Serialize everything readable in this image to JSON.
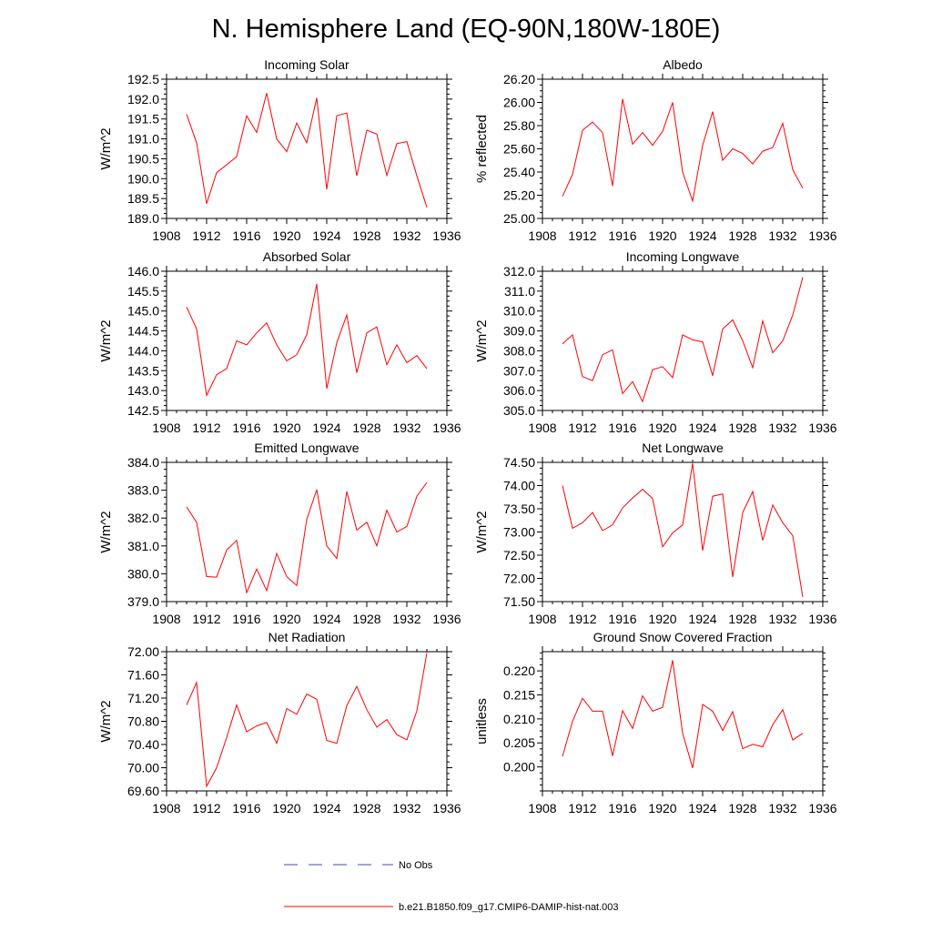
{
  "figure": {
    "title": "N. Hemisphere Land (EQ-90N,180W-180E)"
  },
  "legend": [
    {
      "label": "No Obs",
      "color": "#3b4bbf",
      "dash": true
    },
    {
      "label": "b.e21.B1850.f09_g17.CMIP6-DAMIP-hist-nat.003",
      "color": "#ff0000",
      "dash": false
    }
  ],
  "chart_data": [
    {
      "type": "line",
      "title": "Incoming Solar",
      "ylabel": "W/m^2",
      "xlim": [
        1908,
        1936
      ],
      "xticks": [
        1908,
        1912,
        1916,
        1920,
        1924,
        1928,
        1932,
        1936
      ],
      "ylim": [
        189.0,
        192.5
      ],
      "yticks": [
        "189.0",
        "189.5",
        "190.0",
        "190.5",
        "191.0",
        "191.5",
        "192.0",
        "192.5"
      ],
      "color": "#ff0000",
      "x": [
        1910,
        1911,
        1912,
        1913,
        1914,
        1915,
        1916,
        1917,
        1918,
        1919,
        1920,
        1921,
        1922,
        1923,
        1924,
        1925,
        1926,
        1927,
        1928,
        1929,
        1930,
        1931,
        1932,
        1933,
        1934
      ],
      "y": [
        191.62,
        190.9,
        189.37,
        190.15,
        190.35,
        190.55,
        191.58,
        191.16,
        192.15,
        191.0,
        190.68,
        191.4,
        190.9,
        192.03,
        189.73,
        191.58,
        191.65,
        190.07,
        191.22,
        191.12,
        190.08,
        190.88,
        190.93,
        190.07,
        189.28
      ]
    },
    {
      "type": "line",
      "title": "Albedo",
      "ylabel": "% reflected",
      "xlim": [
        1908,
        1936
      ],
      "xticks": [
        1908,
        1912,
        1916,
        1920,
        1924,
        1928,
        1932,
        1936
      ],
      "ylim": [
        25.0,
        26.2
      ],
      "yticks": [
        "25.00",
        "25.20",
        "25.40",
        "25.60",
        "25.80",
        "26.00",
        "26.20"
      ],
      "color": "#ff0000",
      "x": [
        1910,
        1911,
        1912,
        1913,
        1914,
        1915,
        1916,
        1917,
        1918,
        1919,
        1920,
        1921,
        1922,
        1923,
        1924,
        1925,
        1926,
        1927,
        1928,
        1929,
        1930,
        1931,
        1932,
        1933,
        1934
      ],
      "y": [
        25.19,
        25.38,
        25.76,
        25.83,
        25.74,
        25.28,
        26.03,
        25.64,
        25.74,
        25.63,
        25.75,
        26.0,
        25.4,
        25.15,
        25.63,
        25.92,
        25.5,
        25.6,
        25.56,
        25.47,
        25.58,
        25.61,
        25.82,
        25.42,
        25.26
      ]
    },
    {
      "type": "line",
      "title": "Absorbed Solar",
      "ylabel": "W/m^2",
      "xlim": [
        1908,
        1936
      ],
      "xticks": [
        1908,
        1912,
        1916,
        1920,
        1924,
        1928,
        1932,
        1936
      ],
      "ylim": [
        142.5,
        146.0
      ],
      "yticks": [
        "142.5",
        "143.0",
        "143.5",
        "144.0",
        "144.5",
        "145.0",
        "145.5",
        "146.0"
      ],
      "color": "#ff0000",
      "x": [
        1910,
        1911,
        1912,
        1913,
        1914,
        1915,
        1916,
        1917,
        1918,
        1919,
        1920,
        1921,
        1922,
        1923,
        1924,
        1925,
        1926,
        1927,
        1928,
        1929,
        1930,
        1931,
        1932,
        1933,
        1934
      ],
      "y": [
        145.1,
        144.55,
        142.88,
        143.4,
        143.55,
        144.25,
        144.15,
        144.45,
        144.7,
        144.15,
        143.75,
        143.9,
        144.4,
        145.68,
        143.05,
        144.2,
        144.9,
        143.45,
        144.45,
        144.6,
        143.65,
        144.15,
        143.7,
        143.88,
        143.55
      ]
    },
    {
      "type": "line",
      "title": "Incoming Longwave",
      "ylabel": "W/m^2",
      "xlim": [
        1908,
        1936
      ],
      "xticks": [
        1908,
        1912,
        1916,
        1920,
        1924,
        1928,
        1932,
        1936
      ],
      "ylim": [
        305.0,
        312.0
      ],
      "yticks": [
        "305.0",
        "306.0",
        "307.0",
        "308.0",
        "309.0",
        "310.0",
        "311.0",
        "312.0"
      ],
      "color": "#ff0000",
      "x": [
        1910,
        1911,
        1912,
        1913,
        1914,
        1915,
        1916,
        1917,
        1918,
        1919,
        1920,
        1921,
        1922,
        1923,
        1924,
        1925,
        1926,
        1927,
        1928,
        1929,
        1930,
        1931,
        1932,
        1933,
        1934
      ],
      "y": [
        308.35,
        308.8,
        306.7,
        306.5,
        307.8,
        308.05,
        305.85,
        306.45,
        305.45,
        307.05,
        307.2,
        306.65,
        308.8,
        308.55,
        308.45,
        306.75,
        309.1,
        309.55,
        308.5,
        307.15,
        309.5,
        307.9,
        308.5,
        309.8,
        311.7
      ]
    },
    {
      "type": "line",
      "title": "Emitted Longwave",
      "ylabel": "W/m^2",
      "xlim": [
        1908,
        1936
      ],
      "xticks": [
        1908,
        1912,
        1916,
        1920,
        1924,
        1928,
        1932,
        1936
      ],
      "ylim": [
        379.0,
        384.0
      ],
      "yticks": [
        "379.0",
        "380.0",
        "381.0",
        "382.0",
        "383.0",
        "384.0"
      ],
      "color": "#ff0000",
      "x": [
        1910,
        1911,
        1912,
        1913,
        1914,
        1915,
        1916,
        1917,
        1918,
        1919,
        1920,
        1921,
        1922,
        1923,
        1924,
        1925,
        1926,
        1927,
        1928,
        1929,
        1930,
        1931,
        1932,
        1933,
        1934
      ],
      "y": [
        382.4,
        381.85,
        379.9,
        379.88,
        380.85,
        381.2,
        379.32,
        380.17,
        379.4,
        380.73,
        379.9,
        379.58,
        381.95,
        383.02,
        381.0,
        380.55,
        382.95,
        381.57,
        381.85,
        381.0,
        382.28,
        381.5,
        381.7,
        382.78,
        383.28
      ]
    },
    {
      "type": "line",
      "title": "Net Longwave",
      "ylabel": "W/m^2",
      "xlim": [
        1908,
        1936
      ],
      "xticks": [
        1908,
        1912,
        1916,
        1920,
        1924,
        1928,
        1932,
        1936
      ],
      "ylim": [
        71.5,
        74.5
      ],
      "yticks": [
        "71.50",
        "72.00",
        "72.50",
        "73.00",
        "73.50",
        "74.00",
        "74.50"
      ],
      "color": "#ff0000",
      "x": [
        1910,
        1911,
        1912,
        1913,
        1914,
        1915,
        1916,
        1917,
        1918,
        1919,
        1920,
        1921,
        1922,
        1923,
        1924,
        1925,
        1926,
        1927,
        1928,
        1929,
        1930,
        1931,
        1932,
        1933,
        1934
      ],
      "y": [
        74.0,
        73.08,
        73.2,
        73.42,
        73.03,
        73.15,
        73.52,
        73.73,
        73.92,
        73.72,
        72.68,
        72.98,
        73.15,
        74.48,
        72.6,
        73.77,
        73.82,
        72.03,
        73.42,
        73.87,
        72.82,
        73.58,
        73.2,
        72.92,
        71.6
      ]
    },
    {
      "type": "line",
      "title": "Net Radiation",
      "ylabel": "W/m^2",
      "xlim": [
        1908,
        1936
      ],
      "xticks": [
        1908,
        1912,
        1916,
        1920,
        1924,
        1928,
        1932,
        1936
      ],
      "ylim": [
        69.6,
        72.0
      ],
      "yticks": [
        "69.60",
        "70.00",
        "70.40",
        "70.80",
        "71.20",
        "71.60",
        "72.00"
      ],
      "color": "#ff0000",
      "x": [
        1910,
        1911,
        1912,
        1913,
        1914,
        1915,
        1916,
        1917,
        1918,
        1919,
        1920,
        1921,
        1922,
        1923,
        1924,
        1925,
        1926,
        1927,
        1928,
        1929,
        1930,
        1931,
        1932,
        1933,
        1934
      ],
      "y": [
        71.08,
        71.47,
        69.68,
        70.0,
        70.52,
        71.08,
        70.62,
        70.72,
        70.78,
        70.42,
        71.02,
        70.92,
        71.27,
        71.18,
        70.47,
        70.42,
        71.07,
        71.4,
        71.0,
        70.7,
        70.83,
        70.57,
        70.48,
        70.98,
        71.98
      ]
    },
    {
      "type": "line",
      "title": "Ground Snow Covered Fraction",
      "ylabel": "unitless",
      "xlim": [
        1908,
        1936
      ],
      "xticks": [
        1908,
        1912,
        1916,
        1920,
        1924,
        1928,
        1932,
        1936
      ],
      "ylim": [
        0.195,
        0.224
      ],
      "yticks": [
        "0.200",
        "0.205",
        "0.210",
        "0.215",
        "0.220"
      ],
      "color": "#ff0000",
      "x": [
        1910,
        1911,
        1912,
        1913,
        1914,
        1915,
        1916,
        1917,
        1918,
        1919,
        1920,
        1921,
        1922,
        1923,
        1924,
        1925,
        1926,
        1927,
        1928,
        1929,
        1930,
        1931,
        1932,
        1933,
        1934
      ],
      "y": [
        0.2022,
        0.2095,
        0.2143,
        0.2116,
        0.2116,
        0.2023,
        0.2117,
        0.208,
        0.2148,
        0.2116,
        0.2124,
        0.2222,
        0.207,
        0.1998,
        0.213,
        0.2116,
        0.2076,
        0.2115,
        0.2038,
        0.2047,
        0.2042,
        0.2088,
        0.2119,
        0.2056,
        0.207
      ]
    }
  ]
}
